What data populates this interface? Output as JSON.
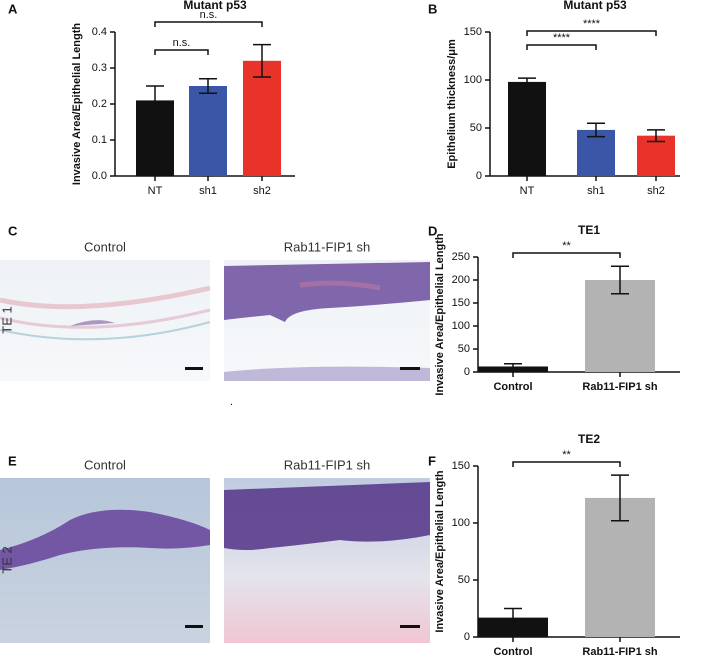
{
  "chart_data": [
    {
      "type": "bar",
      "panel": "A",
      "title": "Mutant p53",
      "y_label": "Invasive Area/Epithelial Length",
      "categories": [
        "NT",
        "sh1",
        "sh2"
      ],
      "values": [
        0.21,
        0.25,
        0.32
      ],
      "errors": [
        0.04,
        0.02,
        0.045
      ],
      "colors": [
        "#111111",
        "#3b56a6",
        "#e8322a"
      ],
      "ylim": [
        0,
        0.4
      ],
      "yticks": [
        {
          "value": 0,
          "label": "0.0"
        },
        0.1,
        0.2,
        0.3,
        0.4
      ],
      "annotations": [
        "n.s.",
        "n.s."
      ]
    },
    {
      "type": "bar",
      "panel": "B",
      "title": "Mutant p53",
      "y_label": "Epithelium thickness/μm",
      "categories": [
        "NT",
        "sh1",
        "sh2"
      ],
      "values": [
        98,
        48,
        42
      ],
      "errors": [
        4,
        7,
        6
      ],
      "colors": [
        "#111111",
        "#3b56a6",
        "#e8322a"
      ],
      "ylim": [
        0,
        150
      ],
      "yticks": [
        0,
        50,
        100,
        150
      ],
      "annotations": [
        "****",
        "****"
      ]
    },
    {
      "type": "bar",
      "panel": "D",
      "title": "TE1",
      "y_label": "Invasive Area/Epithelial Length",
      "categories": [
        "Control",
        "Rab11-FIP1 sh"
      ],
      "values": [
        12,
        200
      ],
      "errors": [
        6,
        30
      ],
      "colors": [
        "#111111",
        "#b3b3b3"
      ],
      "ylim": [
        0,
        250
      ],
      "yticks": [
        0,
        50,
        100,
        150,
        200,
        250
      ],
      "annotations": [
        "**"
      ]
    },
    {
      "type": "bar",
      "panel": "F",
      "title": "TE2",
      "y_label": "Invasive Area/Epithelial Length",
      "categories": [
        "Control",
        "Rab11-FIP1 sh"
      ],
      "values": [
        17,
        122
      ],
      "errors": [
        8,
        20
      ],
      "colors": [
        "#111111",
        "#b3b3b3"
      ],
      "ylim": [
        0,
        150
      ],
      "yticks": [
        0,
        50,
        100,
        150
      ],
      "annotations": [
        "**"
      ]
    }
  ],
  "image_panels": [
    {
      "panel": "C",
      "row_label": "TE 1",
      "captions": [
        "Control",
        "Rab11-FIP1 sh"
      ]
    },
    {
      "panel": "E",
      "row_label": "TE 2",
      "captions": [
        "Control",
        "Rab11-FIP1 sh"
      ]
    }
  ]
}
